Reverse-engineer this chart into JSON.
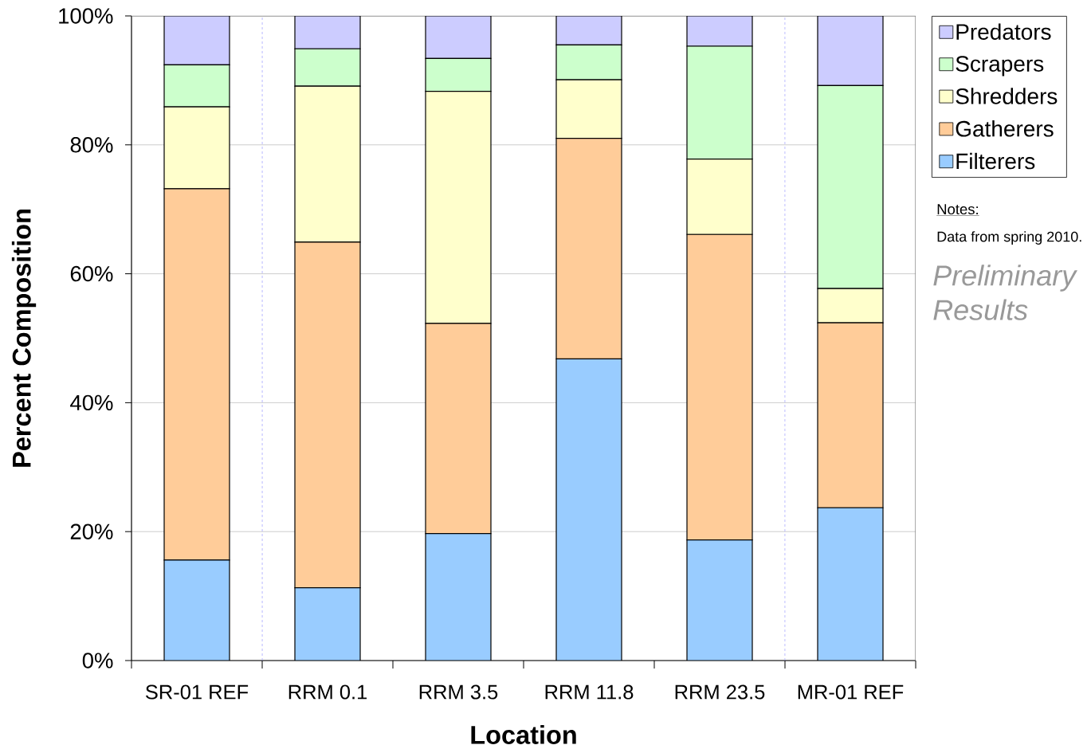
{
  "chart_data": {
    "type": "bar",
    "stacked": true,
    "xlabel": "Location",
    "ylabel": "Percent Composition",
    "categories": [
      "SR-01 REF",
      "RRM 0.1",
      "RRM 3.5",
      "RRM 11.8",
      "RRM 23.5",
      "MR-01 REF"
    ],
    "series": [
      {
        "name": "Filterers",
        "color": "#99ccff",
        "values": [
          15.6,
          11.3,
          19.7,
          46.8,
          18.7,
          23.7
        ]
      },
      {
        "name": "Gatherers",
        "color": "#ffcc99",
        "values": [
          57.6,
          53.6,
          32.6,
          34.2,
          47.4,
          28.7
        ]
      },
      {
        "name": "Shredders",
        "color": "#ffffcc",
        "values": [
          12.7,
          24.2,
          36.0,
          9.1,
          11.7,
          5.3
        ]
      },
      {
        "name": "Scrapers",
        "color": "#ccffcc",
        "values": [
          6.5,
          5.8,
          5.1,
          5.4,
          17.5,
          31.5
        ]
      },
      {
        "name": "Predators",
        "color": "#ccccff",
        "values": [
          7.6,
          5.1,
          6.6,
          4.5,
          4.7,
          10.8
        ]
      }
    ],
    "ylim": [
      0,
      100
    ],
    "yticks": [
      {
        "value": 0,
        "label": "0%"
      },
      {
        "value": 20,
        "label": "20%"
      },
      {
        "value": 40,
        "label": "40%"
      },
      {
        "value": 60,
        "label": "60%"
      },
      {
        "value": 80,
        "label": "80%"
      },
      {
        "value": 100,
        "label": "100%"
      }
    ],
    "grid": "y",
    "legend": "right",
    "annotations": [
      "Notes:",
      "Data from spring 2010.",
      "Preliminary Results"
    ]
  }
}
